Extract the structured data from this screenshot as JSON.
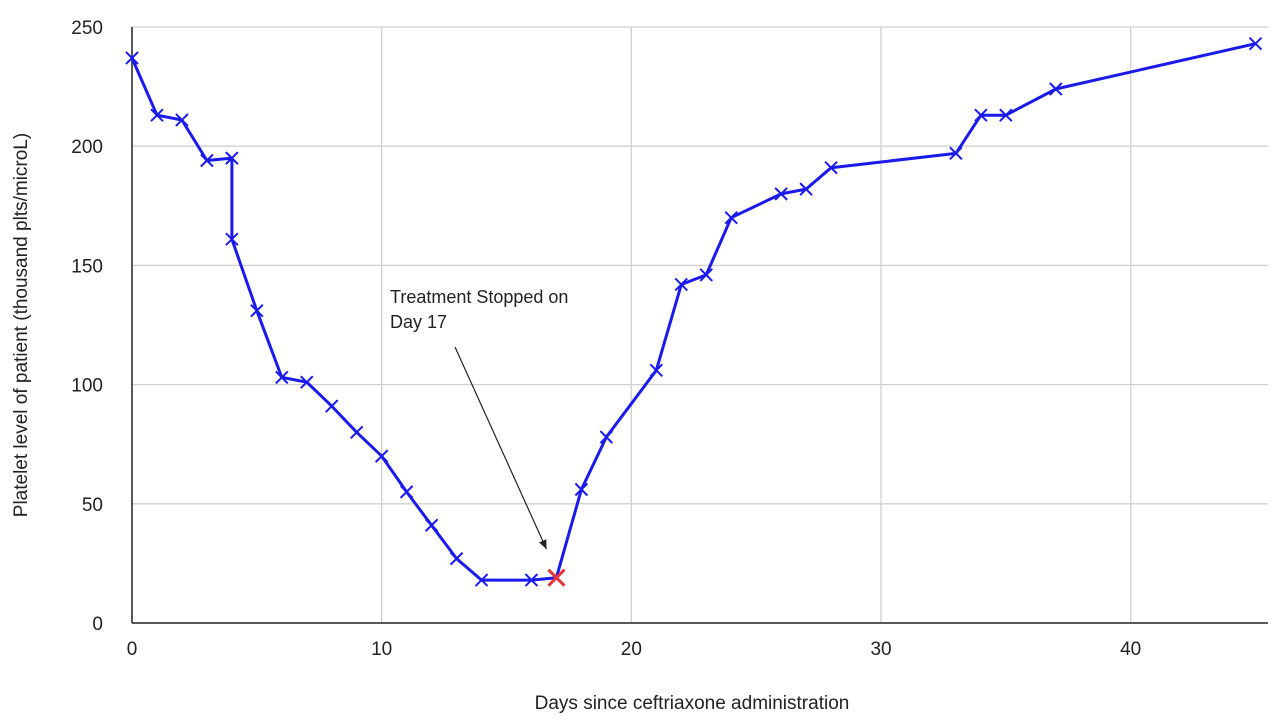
{
  "chart_data": {
    "type": "line",
    "xlabel": "Days since ceftriaxone administration",
    "ylabel": "Platelet level of patient (thousand plts/microL)",
    "xlim": [
      0,
      45.5
    ],
    "ylim": [
      0,
      250
    ],
    "x_ticks": [
      0,
      10,
      20,
      30,
      40
    ],
    "y_ticks": [
      0,
      50,
      100,
      150,
      200,
      250
    ],
    "grid": true,
    "line_color": "#1a1aeb",
    "highlight_color": "#e8333a",
    "series": [
      {
        "x": [
          0,
          1,
          2,
          3,
          4,
          4,
          5,
          6,
          7,
          8,
          9,
          10,
          11,
          12,
          13,
          14,
          16,
          17,
          18,
          19,
          21,
          22,
          23,
          24,
          26,
          27,
          28,
          33,
          34,
          35,
          37,
          45
        ],
        "y": [
          237,
          213,
          211,
          194,
          195,
          161,
          131,
          103,
          101,
          91,
          80,
          70,
          55,
          41,
          27,
          18,
          18,
          19,
          56,
          78,
          106,
          142,
          146,
          170,
          180,
          182,
          191,
          197,
          213,
          213,
          224,
          243
        ]
      }
    ],
    "highlight_point": {
      "x": 17,
      "y": 19
    },
    "annotation": {
      "lines": [
        "Treatment Stopped on",
        "Day 17"
      ],
      "target": {
        "x": 16.6,
        "y": 31
      }
    }
  }
}
